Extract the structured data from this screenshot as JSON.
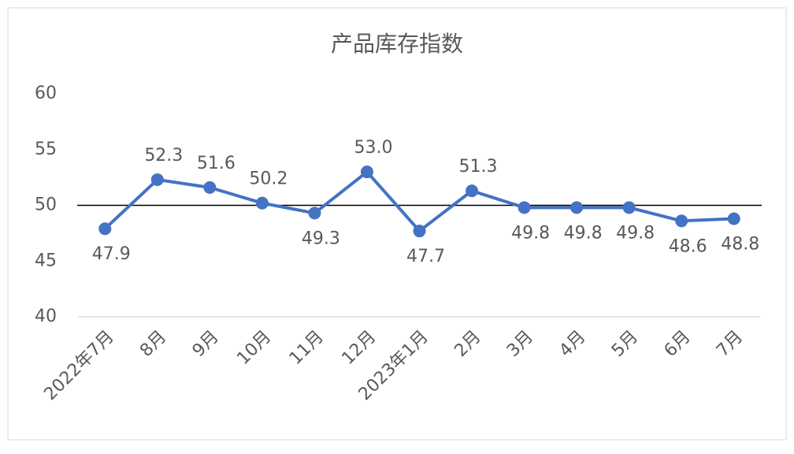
{
  "chart_data": {
    "type": "line",
    "title": "产品库存指数",
    "categories": [
      "2022年7月",
      "8月",
      "9月",
      "10月",
      "11月",
      "12月",
      "2023年1月",
      "2月",
      "3月",
      "4月",
      "5月",
      "6月",
      "7月"
    ],
    "values": [
      47.9,
      52.3,
      51.6,
      50.2,
      49.3,
      53.0,
      47.7,
      51.3,
      49.8,
      49.8,
      49.8,
      48.6,
      48.8
    ],
    "value_labels": [
      "47.9",
      "52.3",
      "51.6",
      "50.2",
      "49.3",
      "53.0",
      "47.7",
      "51.3",
      "49.8",
      "49.8",
      "49.8",
      "48.6",
      "48.8"
    ],
    "color": "#4472c4",
    "ylim": [
      40,
      60
    ],
    "yticks": [
      40,
      45,
      50,
      55,
      60
    ],
    "reference_line": 50,
    "grid": false
  }
}
